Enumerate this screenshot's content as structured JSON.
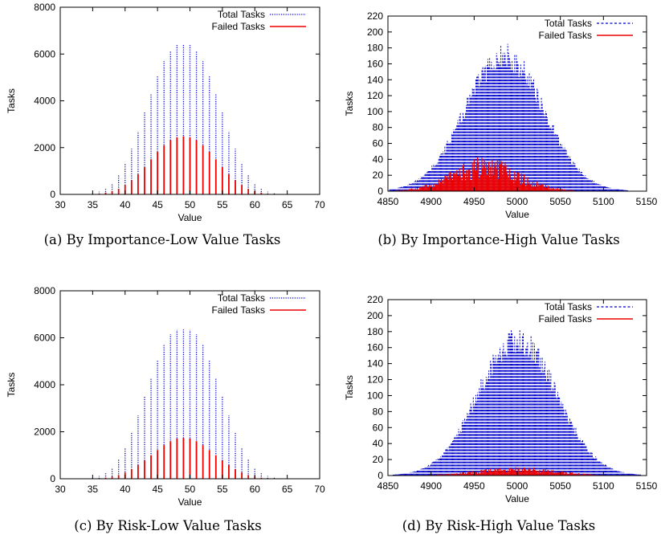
{
  "chart_data": [
    {
      "type": "bar",
      "caption": "(a) By Importance-Low Value Tasks",
      "xlabel": "Value",
      "ylabel": "Tasks",
      "xlim": [
        30,
        70
      ],
      "ylim": [
        0,
        8000
      ],
      "xticks": [
        30,
        35,
        40,
        45,
        50,
        55,
        60,
        65,
        70
      ],
      "yticks": [
        0,
        2000,
        4000,
        6000,
        8000
      ],
      "legend_position": "top-right",
      "x": [
        33,
        34,
        35,
        36,
        37,
        38,
        39,
        40,
        41,
        42,
        43,
        44,
        45,
        46,
        47,
        48,
        49,
        50,
        51,
        52,
        53,
        54,
        55,
        56,
        57,
        58,
        59,
        60,
        61,
        62,
        63,
        64,
        65,
        66,
        67
      ],
      "series": [
        {
          "name": "Total Tasks",
          "style": "dotted",
          "color": "#0000cc",
          "values": [
            3,
            18,
            48,
            115,
            250,
            470,
            820,
            1320,
            1950,
            2700,
            3500,
            4300,
            5050,
            5700,
            6150,
            6380,
            6400,
            6380,
            6150,
            5700,
            5050,
            4300,
            3500,
            2700,
            1950,
            1320,
            820,
            470,
            250,
            115,
            48,
            18,
            6,
            2,
            1
          ]
        },
        {
          "name": "Failed Tasks",
          "style": "solid",
          "color": "#ee0000",
          "values": [
            0,
            5,
            12,
            30,
            70,
            140,
            240,
            400,
            600,
            860,
            1160,
            1500,
            1820,
            2100,
            2320,
            2440,
            2480,
            2440,
            2320,
            2100,
            1820,
            1500,
            1160,
            860,
            600,
            400,
            240,
            140,
            70,
            30,
            12,
            5,
            0,
            0,
            0
          ]
        }
      ]
    },
    {
      "type": "bar",
      "caption": "(b) By Importance-High Value Tasks",
      "xlabel": "Value",
      "ylabel": "Tasks",
      "xlim": [
        4850,
        5150
      ],
      "ylim": [
        0,
        220
      ],
      "xticks": [
        4850,
        4900,
        4950,
        5000,
        5050,
        5100,
        5150
      ],
      "yticks": [
        0,
        20,
        40,
        60,
        80,
        100,
        120,
        140,
        160,
        180,
        200,
        220
      ],
      "legend_position": "top-right",
      "distribution": {
        "center": 4985,
        "sd": 45
      },
      "series": [
        {
          "name": "Total Tasks",
          "style": "dashed",
          "color": "#0000cc",
          "peak": 170
        },
        {
          "name": "Failed Tasks",
          "style": "solid",
          "color": "#ee0000",
          "peak": 40,
          "center": 4963,
          "sd": 38
        }
      ]
    },
    {
      "type": "bar",
      "caption": "(c) By Risk-Low Value Tasks",
      "xlabel": "Value",
      "ylabel": "Tasks",
      "xlim": [
        30,
        70
      ],
      "ylim": [
        0,
        8000
      ],
      "xticks": [
        30,
        35,
        40,
        45,
        50,
        55,
        60,
        65,
        70
      ],
      "yticks": [
        0,
        2000,
        4000,
        6000,
        8000
      ],
      "legend_position": "top-right",
      "x": [
        33,
        34,
        35,
        36,
        37,
        38,
        39,
        40,
        41,
        42,
        43,
        44,
        45,
        46,
        47,
        48,
        49,
        50,
        51,
        52,
        53,
        54,
        55,
        56,
        57,
        58,
        59,
        60,
        61,
        62,
        63,
        64,
        65,
        66,
        67
      ],
      "series": [
        {
          "name": "Total Tasks",
          "style": "dotted",
          "color": "#0000cc",
          "values": [
            3,
            18,
            48,
            115,
            250,
            470,
            820,
            1320,
            1950,
            2700,
            3500,
            4300,
            5050,
            5700,
            6150,
            6330,
            6350,
            6330,
            6150,
            5700,
            5050,
            4300,
            3500,
            2700,
            1950,
            1320,
            820,
            470,
            250,
            115,
            48,
            18,
            6,
            2,
            1
          ]
        },
        {
          "name": "Failed Tasks",
          "style": "solid",
          "color": "#ee0000",
          "values": [
            0,
            3,
            8,
            20,
            45,
            90,
            160,
            270,
            410,
            580,
            780,
            1000,
            1220,
            1430,
            1600,
            1710,
            1740,
            1710,
            1600,
            1430,
            1220,
            1000,
            780,
            580,
            410,
            270,
            160,
            90,
            45,
            20,
            8,
            3,
            0,
            0,
            0
          ]
        }
      ]
    },
    {
      "type": "bar",
      "caption": "(d) By Risk-High Value Tasks",
      "xlabel": "Value",
      "ylabel": "Tasks",
      "xlim": [
        4850,
        5150
      ],
      "ylim": [
        0,
        220
      ],
      "xticks": [
        4850,
        4900,
        4950,
        5000,
        5050,
        5100,
        5150
      ],
      "yticks": [
        0,
        20,
        40,
        60,
        80,
        100,
        120,
        140,
        160,
        180,
        200,
        220
      ],
      "legend_position": "top-right",
      "distribution": {
        "center": 5000,
        "sd": 45
      },
      "series": [
        {
          "name": "Total Tasks",
          "style": "dashed",
          "color": "#0000cc",
          "peak": 170
        },
        {
          "name": "Failed Tasks",
          "style": "solid",
          "color": "#ee0000",
          "peak": 10,
          "center": 5000,
          "sd": 45
        }
      ]
    }
  ]
}
